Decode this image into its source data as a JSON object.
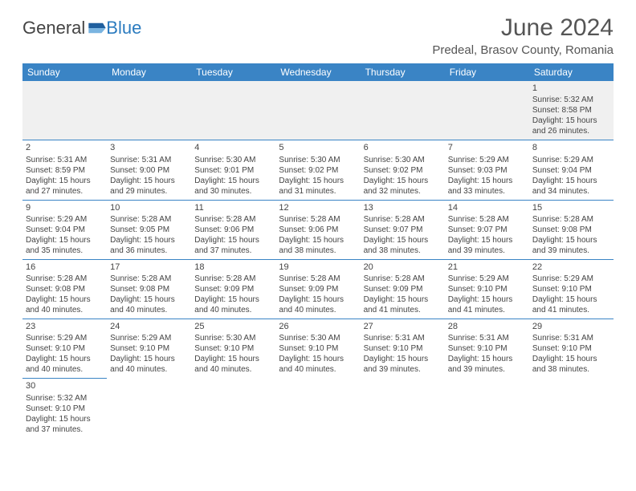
{
  "logo": {
    "text1": "General",
    "text2": "Blue"
  },
  "title": "June 2024",
  "location": "Predeal, Brasov County, Romania",
  "colors": {
    "header_bg": "#3a84c5",
    "header_text": "#ffffff",
    "border": "#3a84c5",
    "first_row_bg": "#f0f0f0",
    "logo_blue": "#2b7bbf",
    "text": "#444444"
  },
  "daynames": [
    "Sunday",
    "Monday",
    "Tuesday",
    "Wednesday",
    "Thursday",
    "Friday",
    "Saturday"
  ],
  "weeks": [
    [
      null,
      null,
      null,
      null,
      null,
      null,
      {
        "n": "1",
        "sr": "5:32 AM",
        "ss": "8:58 PM",
        "dh": "15",
        "dm": "26"
      }
    ],
    [
      {
        "n": "2",
        "sr": "5:31 AM",
        "ss": "8:59 PM",
        "dh": "15",
        "dm": "27"
      },
      {
        "n": "3",
        "sr": "5:31 AM",
        "ss": "9:00 PM",
        "dh": "15",
        "dm": "29"
      },
      {
        "n": "4",
        "sr": "5:30 AM",
        "ss": "9:01 PM",
        "dh": "15",
        "dm": "30"
      },
      {
        "n": "5",
        "sr": "5:30 AM",
        "ss": "9:02 PM",
        "dh": "15",
        "dm": "31"
      },
      {
        "n": "6",
        "sr": "5:30 AM",
        "ss": "9:02 PM",
        "dh": "15",
        "dm": "32"
      },
      {
        "n": "7",
        "sr": "5:29 AM",
        "ss": "9:03 PM",
        "dh": "15",
        "dm": "33"
      },
      {
        "n": "8",
        "sr": "5:29 AM",
        "ss": "9:04 PM",
        "dh": "15",
        "dm": "34"
      }
    ],
    [
      {
        "n": "9",
        "sr": "5:29 AM",
        "ss": "9:04 PM",
        "dh": "15",
        "dm": "35"
      },
      {
        "n": "10",
        "sr": "5:28 AM",
        "ss": "9:05 PM",
        "dh": "15",
        "dm": "36"
      },
      {
        "n": "11",
        "sr": "5:28 AM",
        "ss": "9:06 PM",
        "dh": "15",
        "dm": "37"
      },
      {
        "n": "12",
        "sr": "5:28 AM",
        "ss": "9:06 PM",
        "dh": "15",
        "dm": "38"
      },
      {
        "n": "13",
        "sr": "5:28 AM",
        "ss": "9:07 PM",
        "dh": "15",
        "dm": "38"
      },
      {
        "n": "14",
        "sr": "5:28 AM",
        "ss": "9:07 PM",
        "dh": "15",
        "dm": "39"
      },
      {
        "n": "15",
        "sr": "5:28 AM",
        "ss": "9:08 PM",
        "dh": "15",
        "dm": "39"
      }
    ],
    [
      {
        "n": "16",
        "sr": "5:28 AM",
        "ss": "9:08 PM",
        "dh": "15",
        "dm": "40"
      },
      {
        "n": "17",
        "sr": "5:28 AM",
        "ss": "9:08 PM",
        "dh": "15",
        "dm": "40"
      },
      {
        "n": "18",
        "sr": "5:28 AM",
        "ss": "9:09 PM",
        "dh": "15",
        "dm": "40"
      },
      {
        "n": "19",
        "sr": "5:28 AM",
        "ss": "9:09 PM",
        "dh": "15",
        "dm": "40"
      },
      {
        "n": "20",
        "sr": "5:28 AM",
        "ss": "9:09 PM",
        "dh": "15",
        "dm": "41"
      },
      {
        "n": "21",
        "sr": "5:29 AM",
        "ss": "9:10 PM",
        "dh": "15",
        "dm": "41"
      },
      {
        "n": "22",
        "sr": "5:29 AM",
        "ss": "9:10 PM",
        "dh": "15",
        "dm": "41"
      }
    ],
    [
      {
        "n": "23",
        "sr": "5:29 AM",
        "ss": "9:10 PM",
        "dh": "15",
        "dm": "40"
      },
      {
        "n": "24",
        "sr": "5:29 AM",
        "ss": "9:10 PM",
        "dh": "15",
        "dm": "40"
      },
      {
        "n": "25",
        "sr": "5:30 AM",
        "ss": "9:10 PM",
        "dh": "15",
        "dm": "40"
      },
      {
        "n": "26",
        "sr": "5:30 AM",
        "ss": "9:10 PM",
        "dh": "15",
        "dm": "40"
      },
      {
        "n": "27",
        "sr": "5:31 AM",
        "ss": "9:10 PM",
        "dh": "15",
        "dm": "39"
      },
      {
        "n": "28",
        "sr": "5:31 AM",
        "ss": "9:10 PM",
        "dh": "15",
        "dm": "39"
      },
      {
        "n": "29",
        "sr": "5:31 AM",
        "ss": "9:10 PM",
        "dh": "15",
        "dm": "38"
      }
    ],
    [
      {
        "n": "30",
        "sr": "5:32 AM",
        "ss": "9:10 PM",
        "dh": "15",
        "dm": "37"
      },
      null,
      null,
      null,
      null,
      null,
      null
    ]
  ],
  "labels": {
    "sunrise": "Sunrise:",
    "sunset": "Sunset:",
    "daylight_prefix": "Daylight:",
    "hours_word": "hours",
    "and_word": "and",
    "minutes_word": "minutes."
  }
}
